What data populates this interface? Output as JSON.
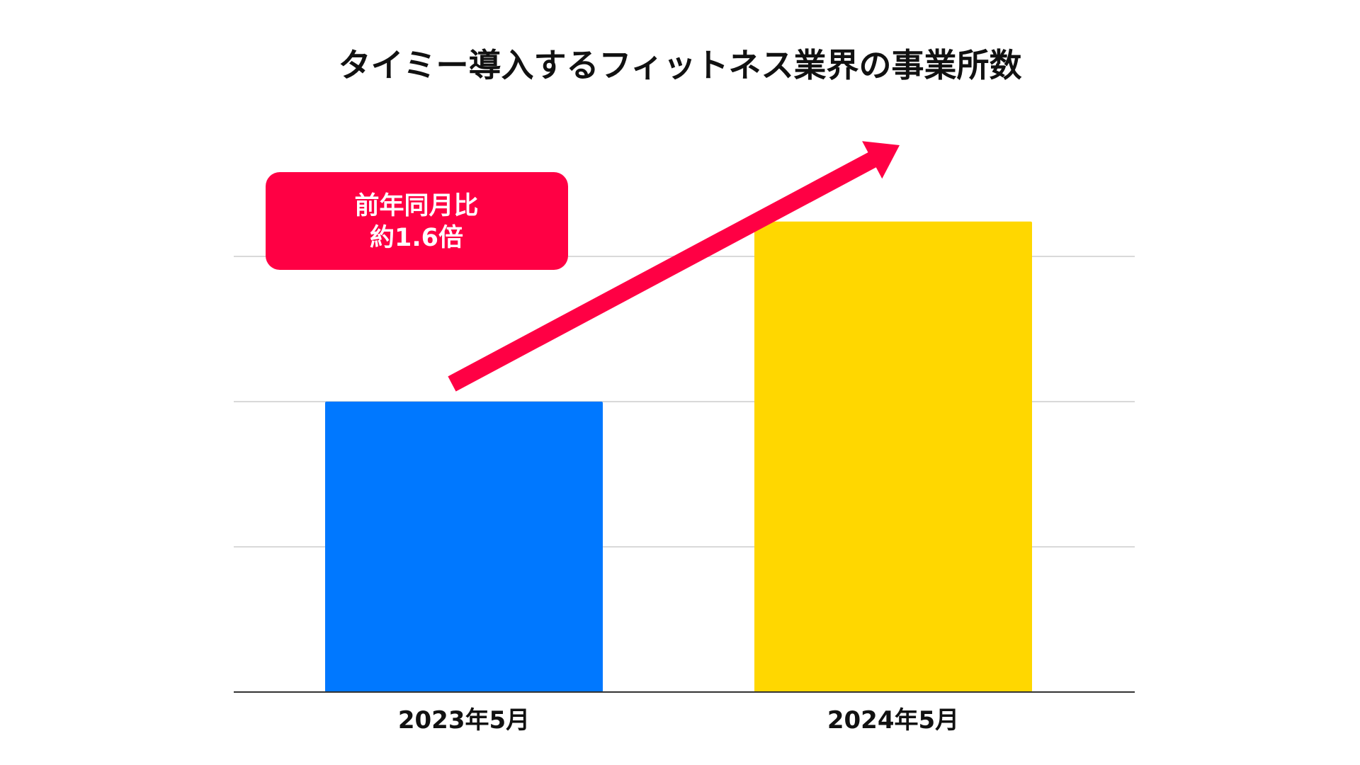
{
  "chart_data": {
    "type": "bar",
    "title": "タイミー導入するフィットネス業界の事業所数",
    "xlabel": "",
    "ylabel": "",
    "categories": [
      "2023年5月",
      "2024年5月"
    ],
    "values": [
      1.0,
      1.62
    ],
    "value_unit": "relative to 2023年5月 (1.0); y-axis unlabeled",
    "ylim": [
      0,
      2.0
    ],
    "y_gridlines": [
      0.5,
      1.0,
      1.5
    ],
    "grid": true,
    "legend": "none",
    "bar_colors": [
      "#0078FF",
      "#FFD700"
    ],
    "annotations": [
      {
        "type": "callout",
        "lines": [
          "前年同月比",
          "約1.6倍"
        ],
        "background": "#FF0044",
        "text_color": "#FFFFFF"
      },
      {
        "type": "arrow",
        "from_category": "2023年5月",
        "to_category": "2024年5月",
        "color": "#FF0044"
      }
    ]
  }
}
